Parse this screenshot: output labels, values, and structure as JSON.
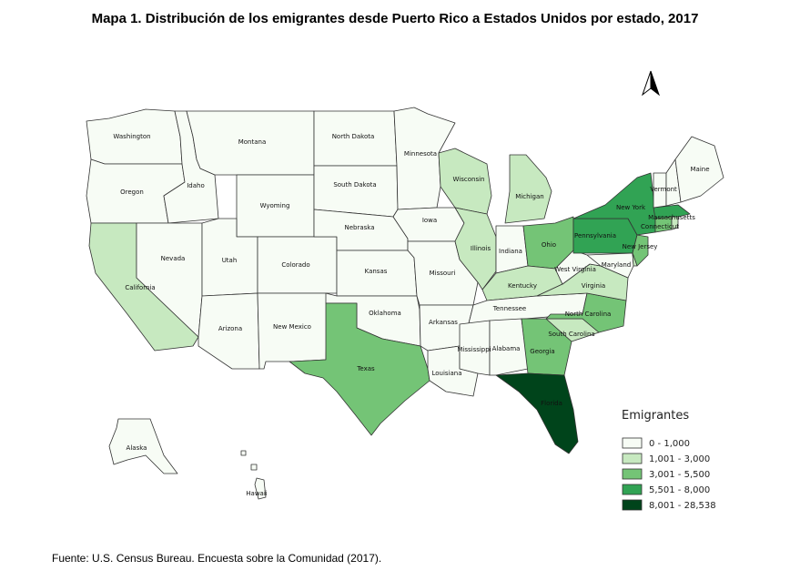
{
  "title": "Mapa 1. Distribución de los emigrantes desde Puerto Rico a Estados Unidos por estado, 2017",
  "source": "Fuente: U.S. Census Bureau. Encuesta sobre la Comunidad (2017).",
  "legend": {
    "title": "Emigrantes",
    "classes": [
      {
        "label": "0 - 1,000",
        "color": "#f7fcf5"
      },
      {
        "label": "1,001 - 3,000",
        "color": "#c7e9c0"
      },
      {
        "label": "3,001 - 5,500",
        "color": "#74c476"
      },
      {
        "label": "5,501 - 8,000",
        "color": "#31a354"
      },
      {
        "label": "8,001 - 28,538",
        "color": "#00441b"
      }
    ]
  },
  "states": {
    "washington": {
      "name": "Washington",
      "class": 0
    },
    "oregon": {
      "name": "Oregon",
      "class": 0
    },
    "california": {
      "name": "California",
      "class": 1
    },
    "idaho": {
      "name": "Idaho",
      "class": 0
    },
    "nevada": {
      "name": "Nevada",
      "class": 0
    },
    "montana": {
      "name": "Montana",
      "class": 0
    },
    "wyoming": {
      "name": "Wyoming",
      "class": 0
    },
    "utah": {
      "name": "Utah",
      "class": 0
    },
    "arizona": {
      "name": "Arizona",
      "class": 0
    },
    "colorado": {
      "name": "Colorado",
      "class": 0
    },
    "new_mexico": {
      "name": "New Mexico",
      "class": 0
    },
    "north_dakota": {
      "name": "North Dakota",
      "class": 0
    },
    "south_dakota": {
      "name": "South Dakota",
      "class": 0
    },
    "nebraska": {
      "name": "Nebraska",
      "class": 0
    },
    "kansas": {
      "name": "Kansas",
      "class": 0
    },
    "oklahoma": {
      "name": "Oklahoma",
      "class": 0
    },
    "texas": {
      "name": "Texas",
      "class": 2
    },
    "minnesota": {
      "name": "Minnesota",
      "class": 0
    },
    "iowa": {
      "name": "Iowa",
      "class": 0
    },
    "missouri": {
      "name": "Missouri",
      "class": 0
    },
    "arkansas": {
      "name": "Arkansas",
      "class": 0
    },
    "louisiana": {
      "name": "Louisiana",
      "class": 0
    },
    "wisconsin": {
      "name": "Wisconsin",
      "class": 1
    },
    "illinois": {
      "name": "Illinois",
      "class": 1
    },
    "michigan": {
      "name": "Michigan",
      "class": 1
    },
    "indiana": {
      "name": "Indiana",
      "class": 0
    },
    "ohio": {
      "name": "Ohio",
      "class": 2
    },
    "kentucky": {
      "name": "Kentucky",
      "class": 1
    },
    "tennessee": {
      "name": "Tennessee",
      "class": 0
    },
    "mississippi": {
      "name": "Mississippi",
      "class": 0
    },
    "alabama": {
      "name": "Alabama",
      "class": 0
    },
    "georgia": {
      "name": "Georgia",
      "class": 2
    },
    "florida": {
      "name": "Florida",
      "class": 4
    },
    "south_carolina": {
      "name": "South Carolina",
      "class": 1
    },
    "north_carolina": {
      "name": "North Carolina",
      "class": 2
    },
    "virginia": {
      "name": "Virginia",
      "class": 1
    },
    "west_virginia": {
      "name": "West Virginia",
      "class": 0
    },
    "pennsylvania": {
      "name": "Pennsylvania",
      "class": 3
    },
    "new_york": {
      "name": "New York",
      "class": 3
    },
    "new_jersey": {
      "name": "New Jersey",
      "class": 2
    },
    "maryland": {
      "name": "Maryland",
      "class": 0
    },
    "delaware": {
      "class": 1
    },
    "connecticut": {
      "name": "Connecticut",
      "class": 2
    },
    "rhode_island": {
      "class": 1
    },
    "massachusetts": {
      "name": "Massachusetts",
      "class": 3
    },
    "vermont": {
      "name": "Vermont",
      "class": 0
    },
    "new_hampshire": {
      "class": 0
    },
    "maine": {
      "name": "Maine",
      "class": 0
    },
    "alaska": {
      "name": "Alaska",
      "class": 0
    },
    "hawaii": {
      "name": "Hawaii",
      "class": 0
    }
  }
}
